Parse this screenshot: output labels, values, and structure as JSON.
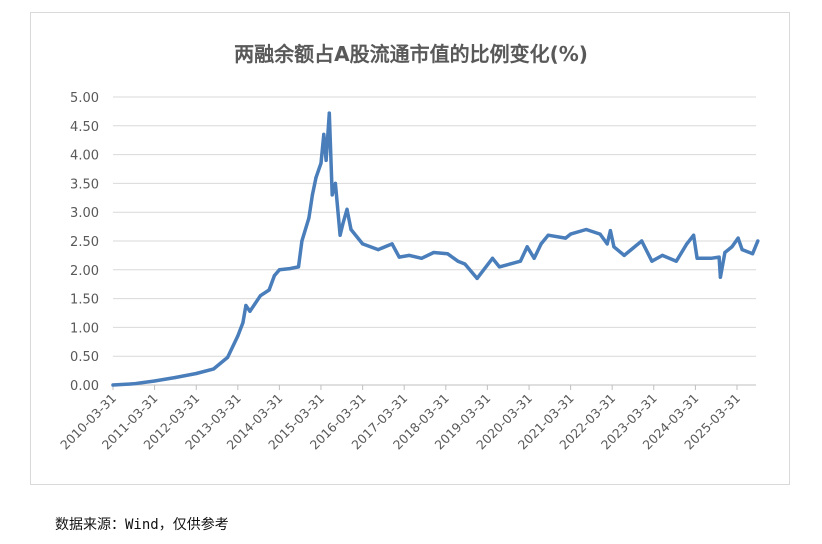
{
  "chart_data": {
    "type": "line",
    "title": "两融余额占A股流通市值的比例变化(%)",
    "xlabel": "",
    "ylabel": "",
    "ylim": [
      0,
      5
    ],
    "yticks": [
      "0.00",
      "0.50",
      "1.00",
      "1.50",
      "2.00",
      "2.50",
      "3.00",
      "3.50",
      "4.00",
      "4.50",
      "5.00"
    ],
    "xticks": [
      "2010-03-31",
      "2011-03-31",
      "2012-03-31",
      "2013-03-31",
      "2014-03-31",
      "2015-03-31",
      "2016-03-31",
      "2017-03-31",
      "2018-03-31",
      "2019-03-31",
      "2020-03-31",
      "2021-03-31",
      "2022-03-31",
      "2023-03-31",
      "2024-03-31",
      "2025-03-31"
    ],
    "xlim": [
      "2010-03-31",
      "2025-10-31"
    ],
    "grid": "horizontal",
    "color": "#4a7ebb",
    "series": [
      {
        "points": [
          [
            "2010-03-31",
            0.0
          ],
          [
            "2010-09-30",
            0.02
          ],
          [
            "2011-03-31",
            0.07
          ],
          [
            "2011-09-30",
            0.13
          ],
          [
            "2012-03-31",
            0.2
          ],
          [
            "2012-08-31",
            0.28
          ],
          [
            "2012-12-31",
            0.48
          ],
          [
            "2013-03-31",
            0.85
          ],
          [
            "2013-05-15",
            1.08
          ],
          [
            "2013-06-10",
            1.38
          ],
          [
            "2013-07-15",
            1.28
          ],
          [
            "2013-10-15",
            1.55
          ],
          [
            "2013-12-31",
            1.65
          ],
          [
            "2014-02-15",
            1.9
          ],
          [
            "2014-03-31",
            2.0
          ],
          [
            "2014-06-30",
            2.02
          ],
          [
            "2014-09-15",
            2.05
          ],
          [
            "2014-10-15",
            2.5
          ],
          [
            "2014-12-15",
            2.9
          ],
          [
            "2015-01-15",
            3.3
          ],
          [
            "2015-02-15",
            3.6
          ],
          [
            "2015-03-31",
            3.85
          ],
          [
            "2015-04-25",
            4.35
          ],
          [
            "2015-05-15",
            3.9
          ],
          [
            "2015-06-12",
            4.72
          ],
          [
            "2015-07-08",
            3.3
          ],
          [
            "2015-08-05",
            3.5
          ],
          [
            "2015-09-15",
            2.6
          ],
          [
            "2015-10-10",
            2.8
          ],
          [
            "2015-11-15",
            3.05
          ],
          [
            "2015-12-20",
            2.7
          ],
          [
            "2016-03-31",
            2.45
          ],
          [
            "2016-08-15",
            2.35
          ],
          [
            "2016-12-15",
            2.45
          ],
          [
            "2017-02-15",
            2.22
          ],
          [
            "2017-05-15",
            2.25
          ],
          [
            "2017-08-31",
            2.2
          ],
          [
            "2017-12-15",
            2.3
          ],
          [
            "2018-04-15",
            2.28
          ],
          [
            "2018-07-15",
            2.15
          ],
          [
            "2018-09-15",
            2.1
          ],
          [
            "2018-12-31",
            1.85
          ],
          [
            "2019-05-15",
            2.2
          ],
          [
            "2019-07-15",
            2.05
          ],
          [
            "2020-01-15",
            2.15
          ],
          [
            "2020-03-15",
            2.4
          ],
          [
            "2020-05-15",
            2.2
          ],
          [
            "2020-07-15",
            2.45
          ],
          [
            "2020-09-15",
            2.6
          ],
          [
            "2021-02-15",
            2.55
          ],
          [
            "2021-03-31",
            2.62
          ],
          [
            "2021-08-15",
            2.7
          ],
          [
            "2021-12-15",
            2.62
          ],
          [
            "2022-02-15",
            2.45
          ],
          [
            "2022-03-15",
            2.68
          ],
          [
            "2022-04-15",
            2.4
          ],
          [
            "2022-07-15",
            2.25
          ],
          [
            "2022-12-15",
            2.5
          ],
          [
            "2023-03-15",
            2.15
          ],
          [
            "2023-06-15",
            2.25
          ],
          [
            "2023-10-15",
            2.15
          ],
          [
            "2024-01-15",
            2.45
          ],
          [
            "2024-03-15",
            2.6
          ],
          [
            "2024-04-15",
            2.2
          ],
          [
            "2024-08-15",
            2.2
          ],
          [
            "2024-10-25",
            2.22
          ],
          [
            "2024-11-05",
            1.87
          ],
          [
            "2024-12-15",
            2.3
          ],
          [
            "2025-02-15",
            2.4
          ],
          [
            "2025-04-10",
            2.55
          ],
          [
            "2025-05-15",
            2.35
          ],
          [
            "2025-08-15",
            2.28
          ],
          [
            "2025-09-30",
            2.5
          ]
        ]
      }
    ]
  },
  "source": "数据来源：Wind，仅供参考"
}
